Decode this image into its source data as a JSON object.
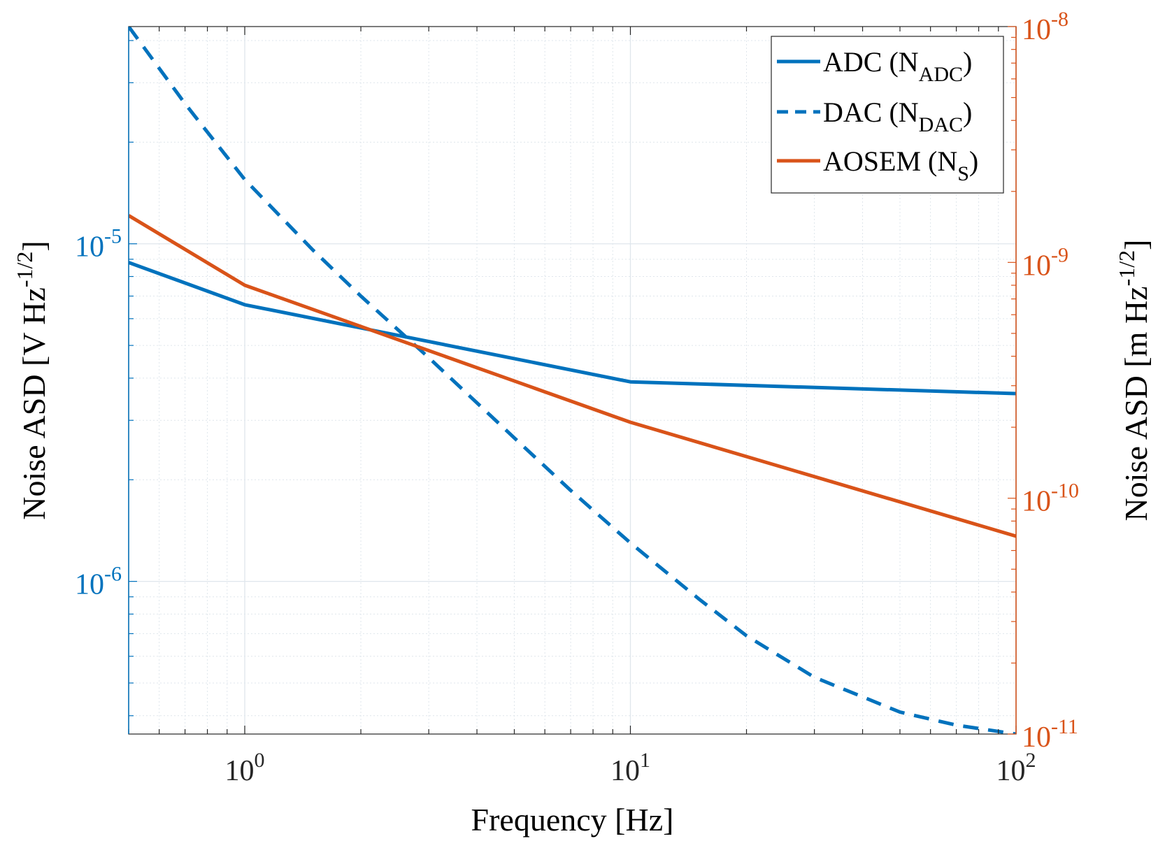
{
  "chart_data": {
    "type": "line",
    "title": "",
    "xlabel": "Frequency [Hz]",
    "xscale": "log",
    "xlim": [
      0.5,
      100
    ],
    "x_ticks": [
      {
        "base": "10",
        "exp": "0"
      },
      {
        "base": "10",
        "exp": "1"
      },
      {
        "base": "10",
        "exp": "2"
      }
    ],
    "y_left": {
      "label": "Noise ASD [V Hz",
      "label_exp": "-1/2",
      "label_close": "]",
      "scale": "log",
      "lim": [
        3.53e-07,
        4.4e-05
      ],
      "color": "#0072BD",
      "ticks": [
        {
          "base": "10",
          "exp": "-6"
        },
        {
          "base": "10",
          "exp": "-5"
        }
      ]
    },
    "y_right": {
      "label": "Noise ASD [m Hz",
      "label_exp": "-1/2",
      "label_close": "]",
      "scale": "log",
      "lim": [
        1e-11,
        1e-08
      ],
      "color": "#D95319",
      "ticks": [
        {
          "base": "10",
          "exp": "-11"
        },
        {
          "base": "10",
          "exp": "-10"
        },
        {
          "base": "10",
          "exp": "-9"
        },
        {
          "base": "10",
          "exp": "-8"
        }
      ]
    },
    "grid": true,
    "legend": {
      "position": "top-right",
      "entries": [
        {
          "series": "adc",
          "text": "ADC (N",
          "sub": "ADC",
          "close": ")"
        },
        {
          "series": "dac",
          "text": "DAC (N",
          "sub": "DAC",
          "close": ")"
        },
        {
          "series": "aosem",
          "text": "AOSEM (N",
          "sub": "S",
          "close": ")"
        }
      ]
    },
    "series": [
      {
        "id": "adc",
        "name": "ADC (N_ADC)",
        "axis": "left",
        "color": "#0072BD",
        "style": "solid",
        "x": [
          0.5,
          1,
          10,
          100
        ],
        "y": [
          8.8e-06,
          6.6e-06,
          3.9e-06,
          3.6e-06
        ]
      },
      {
        "id": "dac",
        "name": "DAC (N_DAC)",
        "axis": "left",
        "color": "#0072BD",
        "style": "dashed",
        "x": [
          0.5,
          0.7,
          1,
          1.5,
          2,
          3,
          5,
          7,
          10,
          15,
          20,
          30,
          50,
          70,
          100
        ],
        "y": [
          4.4e-05,
          2.6e-05,
          1.55e-05,
          9.6e-06,
          7e-06,
          4.6e-06,
          2.66e-06,
          1.86e-06,
          1.3e-06,
          8.9e-07,
          6.9e-07,
          5.2e-07,
          4.1e-07,
          3.75e-07,
          3.53e-07
        ]
      },
      {
        "id": "aosem",
        "name": "AOSEM (N_S)",
        "axis": "right",
        "color": "#D95319",
        "style": "solid",
        "x": [
          0.5,
          1,
          10,
          100
        ],
        "y": [
          1.58e-09,
          8e-10,
          2.1e-10,
          6.9e-11
        ]
      }
    ]
  }
}
